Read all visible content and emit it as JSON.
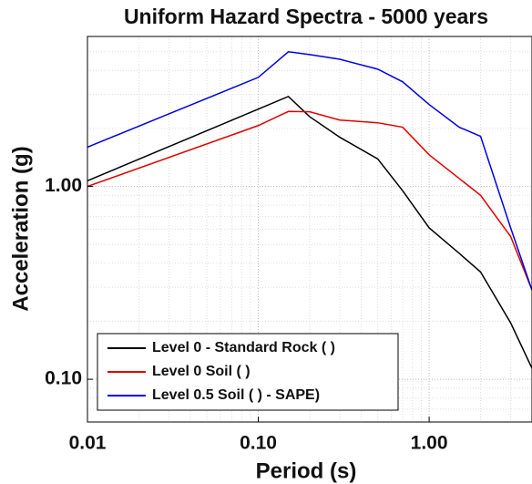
{
  "chart_data": {
    "type": "line",
    "title": "Uniform Hazard Spectra - 5000 years",
    "x_label": "Period (s)",
    "y_label": "Acceleration (g)",
    "x": [
      0.01,
      0.1,
      0.15,
      0.2,
      0.3,
      0.5,
      0.7,
      1,
      1.5,
      2,
      3,
      4
    ],
    "series": [
      {
        "name": "Level 0 - Standard Rock ( )",
        "color": "#000000",
        "values": [
          1.07,
          2.52,
          2.93,
          2.3,
          1.8,
          1.39,
          0.95,
          0.61,
          0.45,
          0.36,
          0.196,
          0.114
        ]
      },
      {
        "name": "Level 0 Soil ( )",
        "color": "#e00000",
        "values": [
          1.0,
          2.07,
          2.45,
          2.44,
          2.21,
          2.14,
          2.03,
          1.46,
          1.1,
          0.9,
          0.55,
          0.29
        ]
      },
      {
        "name": "Level 0.5 Soil ( ) - SAPE)",
        "color": "#0000e0",
        "values": [
          1.6,
          3.68,
          5.0,
          4.83,
          4.57,
          4.06,
          3.49,
          2.66,
          2.03,
          1.82,
          0.61,
          0.29
        ]
      }
    ],
    "xlim": [
      0.01,
      4
    ],
    "ylim": [
      0.06,
      6
    ],
    "xticks": [
      0.01,
      {
        "value": 0.1,
        "label": "0.10"
      },
      {
        "value": 1,
        "label": "1.00"
      }
    ],
    "yticks": [
      {
        "value": 0.1,
        "label": "0.10"
      },
      {
        "value": 1,
        "label": "1.00"
      }
    ],
    "x_log": true,
    "y_log": true,
    "grid": true,
    "legend": "lower left"
  }
}
